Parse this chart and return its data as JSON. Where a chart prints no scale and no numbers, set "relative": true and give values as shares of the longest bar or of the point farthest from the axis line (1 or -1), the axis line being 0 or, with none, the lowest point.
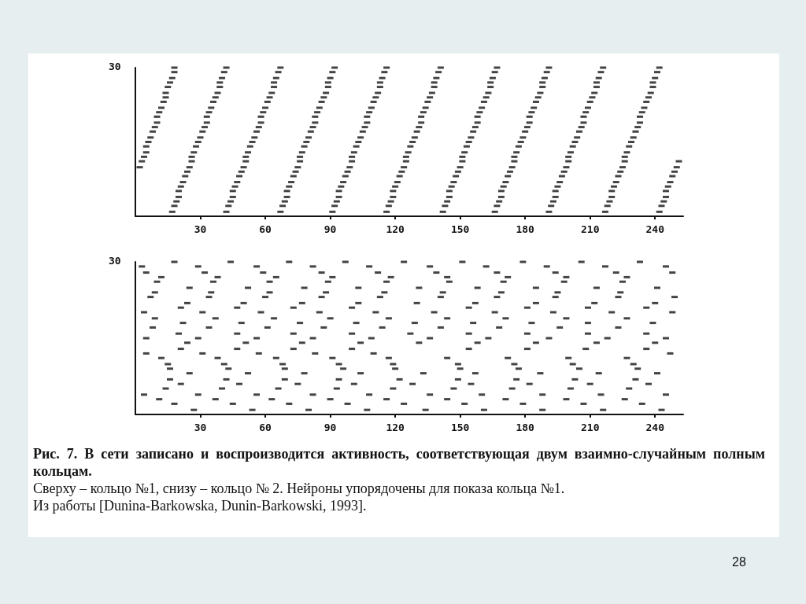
{
  "chart_data": [
    {
      "type": "scatter",
      "relative": true,
      "xlim": [
        0,
        253
      ],
      "xticks": [
        30,
        60,
        90,
        120,
        150,
        180,
        210,
        240
      ],
      "series": [
        {
          "color": "#151515",
          "x": [
            2,
            3,
            4,
            5,
            5,
            6,
            7,
            8,
            9,
            10,
            10,
            11,
            12,
            13,
            14,
            14,
            15,
            16,
            17,
            18,
            18
          ],
          "values": [
            0.33,
            0.37,
            0.4,
            0.43,
            0.47,
            0.5,
            0.53,
            0.57,
            0.6,
            0.63,
            0.67,
            0.7,
            0.73,
            0.77,
            0.8,
            0.83,
            0.87,
            0.9,
            0.93,
            0.97,
            1
          ]
        },
        {
          "color": "#151515",
          "x": [
            17,
            18,
            19,
            20,
            20,
            21,
            22,
            23,
            24,
            25,
            26,
            26,
            27,
            28,
            29,
            30,
            31,
            32,
            33,
            33,
            34,
            35,
            36,
            37,
            38,
            39,
            39,
            40,
            41,
            42
          ],
          "values": [
            0.03,
            0.07,
            0.1,
            0.13,
            0.17,
            0.2,
            0.23,
            0.27,
            0.3,
            0.33,
            0.37,
            0.4,
            0.43,
            0.47,
            0.5,
            0.53,
            0.57,
            0.6,
            0.63,
            0.67,
            0.7,
            0.73,
            0.77,
            0.8,
            0.83,
            0.87,
            0.9,
            0.93,
            0.97,
            1
          ]
        },
        {
          "color": "#151515",
          "x": [
            42,
            43,
            44,
            45,
            45,
            46,
            47,
            48,
            49,
            50,
            51,
            51,
            52,
            53,
            54,
            55,
            56,
            57,
            58,
            58,
            59,
            60,
            61,
            62,
            63,
            64,
            64,
            65,
            66,
            67
          ],
          "values": [
            0.03,
            0.07,
            0.1,
            0.13,
            0.17,
            0.2,
            0.23,
            0.27,
            0.3,
            0.33,
            0.37,
            0.4,
            0.43,
            0.47,
            0.5,
            0.53,
            0.57,
            0.6,
            0.63,
            0.67,
            0.7,
            0.73,
            0.77,
            0.8,
            0.83,
            0.87,
            0.9,
            0.93,
            0.97,
            1
          ]
        },
        {
          "color": "#151515",
          "x": [
            67,
            68,
            69,
            70,
            70,
            71,
            72,
            73,
            74,
            75,
            76,
            76,
            77,
            78,
            79,
            80,
            81,
            82,
            83,
            83,
            84,
            85,
            86,
            87,
            88,
            89,
            89,
            90,
            91,
            92
          ],
          "values": [
            0.03,
            0.07,
            0.1,
            0.13,
            0.17,
            0.2,
            0.23,
            0.27,
            0.3,
            0.33,
            0.37,
            0.4,
            0.43,
            0.47,
            0.5,
            0.53,
            0.57,
            0.6,
            0.63,
            0.67,
            0.7,
            0.73,
            0.77,
            0.8,
            0.83,
            0.87,
            0.9,
            0.93,
            0.97,
            1
          ]
        },
        {
          "color": "#151515",
          "x": [
            91,
            92,
            93,
            94,
            94,
            95,
            96,
            97,
            98,
            99,
            100,
            100,
            101,
            102,
            103,
            104,
            105,
            106,
            107,
            107,
            108,
            109,
            110,
            111,
            112,
            113,
            113,
            114,
            115,
            116
          ],
          "values": [
            0.03,
            0.07,
            0.1,
            0.13,
            0.17,
            0.2,
            0.23,
            0.27,
            0.3,
            0.33,
            0.37,
            0.4,
            0.43,
            0.47,
            0.5,
            0.53,
            0.57,
            0.6,
            0.63,
            0.67,
            0.7,
            0.73,
            0.77,
            0.8,
            0.83,
            0.87,
            0.9,
            0.93,
            0.97,
            1
          ]
        },
        {
          "color": "#151515",
          "x": [
            116,
            117,
            118,
            119,
            119,
            120,
            121,
            122,
            123,
            124,
            125,
            125,
            126,
            127,
            128,
            129,
            130,
            131,
            132,
            132,
            133,
            134,
            135,
            136,
            137,
            138,
            138,
            139,
            140,
            141
          ],
          "values": [
            0.03,
            0.07,
            0.1,
            0.13,
            0.17,
            0.2,
            0.23,
            0.27,
            0.3,
            0.33,
            0.37,
            0.4,
            0.43,
            0.47,
            0.5,
            0.53,
            0.57,
            0.6,
            0.63,
            0.67,
            0.7,
            0.73,
            0.77,
            0.8,
            0.83,
            0.87,
            0.9,
            0.93,
            0.97,
            1
          ]
        },
        {
          "color": "#151515",
          "x": [
            142,
            143,
            144,
            145,
            145,
            146,
            147,
            148,
            149,
            150,
            151,
            151,
            152,
            153,
            154,
            155,
            156,
            157,
            158,
            158,
            159,
            160,
            161,
            162,
            163,
            164,
            164,
            165,
            166,
            167
          ],
          "values": [
            0.03,
            0.07,
            0.1,
            0.13,
            0.17,
            0.2,
            0.23,
            0.27,
            0.3,
            0.33,
            0.37,
            0.4,
            0.43,
            0.47,
            0.5,
            0.53,
            0.57,
            0.6,
            0.63,
            0.67,
            0.7,
            0.73,
            0.77,
            0.8,
            0.83,
            0.87,
            0.9,
            0.93,
            0.97,
            1
          ]
        },
        {
          "color": "#151515",
          "x": [
            166,
            167,
            168,
            169,
            169,
            170,
            171,
            172,
            173,
            174,
            175,
            175,
            176,
            177,
            178,
            179,
            180,
            181,
            182,
            182,
            183,
            184,
            185,
            186,
            187,
            188,
            188,
            189,
            190,
            191
          ],
          "values": [
            0.03,
            0.07,
            0.1,
            0.13,
            0.17,
            0.2,
            0.23,
            0.27,
            0.3,
            0.33,
            0.37,
            0.4,
            0.43,
            0.47,
            0.5,
            0.53,
            0.57,
            0.6,
            0.63,
            0.67,
            0.7,
            0.73,
            0.77,
            0.8,
            0.83,
            0.87,
            0.9,
            0.93,
            0.97,
            1
          ]
        },
        {
          "color": "#151515",
          "x": [
            191,
            192,
            193,
            194,
            194,
            195,
            196,
            197,
            198,
            199,
            200,
            200,
            201,
            202,
            203,
            204,
            205,
            206,
            207,
            207,
            208,
            209,
            210,
            211,
            212,
            213,
            213,
            214,
            215,
            216
          ],
          "values": [
            0.03,
            0.07,
            0.1,
            0.13,
            0.17,
            0.2,
            0.23,
            0.27,
            0.3,
            0.33,
            0.37,
            0.4,
            0.43,
            0.47,
            0.5,
            0.53,
            0.57,
            0.6,
            0.63,
            0.67,
            0.7,
            0.73,
            0.77,
            0.8,
            0.83,
            0.87,
            0.9,
            0.93,
            0.97,
            1
          ]
        },
        {
          "color": "#151515",
          "x": [
            217,
            218,
            219,
            220,
            220,
            221,
            222,
            223,
            224,
            225,
            226,
            226,
            227,
            228,
            229,
            230,
            231,
            232,
            233,
            233,
            234,
            235,
            236,
            237,
            238,
            239,
            239,
            240,
            241,
            242
          ],
          "values": [
            0.03,
            0.07,
            0.1,
            0.13,
            0.17,
            0.2,
            0.23,
            0.27,
            0.3,
            0.33,
            0.37,
            0.4,
            0.43,
            0.47,
            0.5,
            0.53,
            0.57,
            0.6,
            0.63,
            0.67,
            0.7,
            0.73,
            0.77,
            0.8,
            0.83,
            0.87,
            0.9,
            0.93,
            0.97,
            1
          ]
        },
        {
          "color": "#151515",
          "x": [
            242,
            243,
            244,
            245,
            245,
            246,
            247,
            248,
            249,
            250,
            251
          ],
          "values": [
            0.03,
            0.07,
            0.1,
            0.13,
            0.17,
            0.2,
            0.23,
            0.27,
            0.3,
            0.33,
            0.37
          ]
        }
      ],
      "annotations": [
        "30",
        "Рис. 7. В сети записано и воспроизводится активность, соответствующая двум взаимно-случайным полным кольцам.",
        "Сверху – кольцо №1, снизу – кольцо № 2. Нейроны упорядочены для показа кольца №1.",
        "Из работы [Dunina-Barkowska, Dunin-Barkowski, 1993].",
        "28"
      ]
    },
    {
      "type": "scatter",
      "relative": true,
      "xlim": [
        0,
        253
      ],
      "xticks": [
        30,
        60,
        90,
        120,
        150,
        180,
        210,
        240
      ],
      "series": [
        {
          "color": "#151515",
          "x": [
            18,
            44,
            71,
            97,
            124,
            151,
            179,
            206,
            233,
            3,
            29,
            56,
            82,
            108,
            136,
            162,
            190,
            217,
            245,
            5,
            32,
            59,
            86,
            112,
            139,
            167,
            194,
            222,
            248,
            12,
            38,
            65,
            91,
            118,
            144,
            172,
            199,
            227,
            10,
            36,
            62,
            89,
            116,
            145,
            170,
            198,
            225,
            25,
            52,
            78,
            103,
            131,
            158,
            185,
            213,
            241,
            9,
            35,
            62,
            88,
            115,
            142,
            169,
            195,
            224,
            7,
            34,
            60,
            86,
            113,
            141,
            167,
            194,
            223,
            249,
            24,
            50,
            77,
            103,
            130,
            157,
            185,
            212,
            240,
            21,
            47,
            73,
            100,
            154,
            181,
            209,
            236,
            4,
            31,
            58,
            85,
            111,
            138,
            166,
            193,
            220,
            248,
            9,
            37,
            64,
            90,
            117,
            144,
            171,
            199,
            227,
            22,
            49,
            76,
            102,
            129,
            156,
            183,
            209,
            239,
            8,
            34,
            61,
            87,
            114,
            141,
            168,
            196,
            223,
            20,
            47,
            73,
            100,
            127,
            154,
            181,
            209,
            236,
            5,
            29,
            56,
            82,
            109,
            136,
            163,
            191,
            218,
            245,
            24,
            51,
            77,
            104,
            131,
            158,
            185,
            213,
            240,
            21,
            47,
            73,
            100,
            154,
            181,
            208,
            236,
            5,
            31,
            57,
            83,
            110,
            247,
            12,
            38,
            65,
            91,
            117,
            144,
            172,
            200,
            227,
            15,
            41,
            68,
            94,
            119,
            149,
            175,
            202,
            230,
            16,
            43,
            69,
            96,
            120,
            150,
            177,
            205,
            232,
            25,
            52,
            78,
            104,
            133,
            157,
            187,
            214,
            241,
            16,
            42,
            69,
            94,
            122,
            149,
            176,
            203,
            231,
            21,
            48,
            75,
            101,
            128,
            155,
            182,
            210,
            237,
            14,
            40,
            66,
            93,
            119,
            147,
            174,
            201,
            228,
            4,
            29,
            56,
            82,
            108,
            136,
            160,
            188,
            215,
            245,
            11,
            37,
            63,
            90,
            116,
            144,
            171,
            199,
            226,
            18,
            45,
            71,
            98,
            124,
            152,
            179,
            207,
            234,
            27,
            54,
            80,
            107,
            134,
            161,
            188,
            216,
            243
          ],
          "values": [
            1,
            1,
            1,
            1,
            1,
            1,
            1,
            1,
            1,
            0.97,
            0.97,
            0.97,
            0.97,
            0.97,
            0.97,
            0.97,
            0.97,
            0.97,
            0.97,
            0.93,
            0.93,
            0.93,
            0.93,
            0.93,
            0.93,
            0.93,
            0.93,
            0.93,
            0.93,
            0.9,
            0.9,
            0.9,
            0.9,
            0.9,
            0.9,
            0.9,
            0.9,
            0.9,
            0.87,
            0.87,
            0.87,
            0.87,
            0.87,
            0.87,
            0.87,
            0.87,
            0.87,
            0.83,
            0.83,
            0.83,
            0.83,
            0.83,
            0.83,
            0.83,
            0.83,
            0.83,
            0.8,
            0.8,
            0.8,
            0.8,
            0.8,
            0.8,
            0.8,
            0.8,
            0.8,
            0.77,
            0.77,
            0.77,
            0.77,
            0.77,
            0.77,
            0.77,
            0.77,
            0.77,
            0.77,
            0.73,
            0.73,
            0.73,
            0.73,
            0.73,
            0.73,
            0.73,
            0.73,
            0.73,
            0.7,
            0.7,
            0.7,
            0.7,
            0.7,
            0.7,
            0.7,
            0.7,
            0.67,
            0.67,
            0.67,
            0.67,
            0.67,
            0.67,
            0.67,
            0.67,
            0.67,
            0.67,
            0.63,
            0.63,
            0.63,
            0.63,
            0.63,
            0.63,
            0.63,
            0.63,
            0.63,
            0.6,
            0.6,
            0.6,
            0.6,
            0.6,
            0.6,
            0.6,
            0.6,
            0.6,
            0.57,
            0.57,
            0.57,
            0.57,
            0.57,
            0.57,
            0.57,
            0.57,
            0.57,
            0.53,
            0.53,
            0.53,
            0.53,
            0.53,
            0.53,
            0.53,
            0.53,
            0.53,
            0.5,
            0.5,
            0.5,
            0.5,
            0.5,
            0.5,
            0.5,
            0.5,
            0.5,
            0.5,
            0.47,
            0.47,
            0.47,
            0.47,
            0.47,
            0.47,
            0.47,
            0.47,
            0.47,
            0.43,
            0.43,
            0.43,
            0.43,
            0.43,
            0.43,
            0.43,
            0.43,
            0.4,
            0.4,
            0.4,
            0.4,
            0.4,
            0.4,
            0.37,
            0.37,
            0.37,
            0.37,
            0.37,
            0.37,
            0.37,
            0.37,
            0.37,
            0.33,
            0.33,
            0.33,
            0.33,
            0.33,
            0.33,
            0.33,
            0.33,
            0.33,
            0.3,
            0.3,
            0.3,
            0.3,
            0.3,
            0.3,
            0.3,
            0.3,
            0.3,
            0.27,
            0.27,
            0.27,
            0.27,
            0.27,
            0.27,
            0.27,
            0.27,
            0.27,
            0.23,
            0.23,
            0.23,
            0.23,
            0.23,
            0.23,
            0.23,
            0.23,
            0.23,
            0.2,
            0.2,
            0.2,
            0.2,
            0.2,
            0.2,
            0.2,
            0.2,
            0.2,
            0.17,
            0.17,
            0.17,
            0.17,
            0.17,
            0.17,
            0.17,
            0.17,
            0.17,
            0.13,
            0.13,
            0.13,
            0.13,
            0.13,
            0.13,
            0.13,
            0.13,
            0.13,
            0.13,
            0.1,
            0.1,
            0.1,
            0.1,
            0.1,
            0.1,
            0.1,
            0.1,
            0.1,
            0.07,
            0.07,
            0.07,
            0.07,
            0.07,
            0.07,
            0.07,
            0.07,
            0.07,
            0.03,
            0.03,
            0.03,
            0.03,
            0.03,
            0.03,
            0.03,
            0.03,
            0.03
          ]
        }
      ],
      "annotations": [
        "30"
      ]
    }
  ]
}
